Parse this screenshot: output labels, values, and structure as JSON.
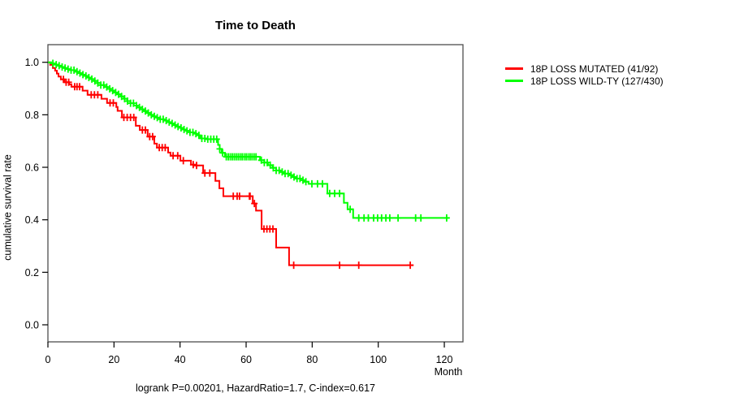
{
  "chart_data": {
    "type": "line",
    "subtype": "kaplan-meier-step",
    "title": "Time to Death",
    "xlabel": "Month",
    "ylabel": "cumulative survival rate",
    "annotation": "logrank P=0.00201, HazardRatio=1.7, C-index=0.617",
    "grid": false,
    "legend_position": "right",
    "xlim": [
      0,
      126
    ],
    "ylim": [
      0.0,
      1.0
    ],
    "x_ticks": {
      "values": [
        0,
        20,
        40,
        60,
        80,
        100,
        120
      ],
      "labels": [
        "0",
        "20",
        "40",
        "60",
        "80",
        "100",
        "120"
      ]
    },
    "y_ticks": {
      "values": [
        1.0,
        0.8,
        0.6,
        0.4,
        0.2,
        0.0
      ],
      "labels": [
        "1.0",
        "0.8",
        "0.6",
        "0.4",
        "0.2",
        "0.0"
      ]
    },
    "series": [
      {
        "name": "18P LOSS MUTATED (41/92)",
        "color": "#ff0000",
        "events_total": "41/92",
        "end_time": 110.7,
        "steps": [
          [
            0,
            1.0
          ],
          [
            0.7,
            0.99
          ],
          [
            1.5,
            0.978
          ],
          [
            2.2,
            0.968
          ],
          [
            2.7,
            0.957
          ],
          [
            3.2,
            0.946
          ],
          [
            3.9,
            0.935
          ],
          [
            5.0,
            0.924
          ],
          [
            6.4,
            0.916
          ],
          [
            7.1,
            0.907
          ],
          [
            10.5,
            0.892
          ],
          [
            12.0,
            0.876
          ],
          [
            16.2,
            0.861
          ],
          [
            17.9,
            0.845
          ],
          [
            20.7,
            0.83
          ],
          [
            21.1,
            0.815
          ],
          [
            22.4,
            0.79
          ],
          [
            26.6,
            0.758
          ],
          [
            27.8,
            0.742
          ],
          [
            30.2,
            0.717
          ],
          [
            32.2,
            0.69
          ],
          [
            33.0,
            0.675
          ],
          [
            36.4,
            0.656
          ],
          [
            37.1,
            0.644
          ],
          [
            40.1,
            0.625
          ],
          [
            43.3,
            0.61
          ],
          [
            44.5,
            0.607
          ],
          [
            47.0,
            0.578
          ],
          [
            50.7,
            0.548
          ],
          [
            51.9,
            0.52
          ],
          [
            53.1,
            0.49
          ],
          [
            62.0,
            0.462
          ],
          [
            63.0,
            0.435
          ],
          [
            64.7,
            0.365
          ],
          [
            69.1,
            0.294
          ],
          [
            73.0,
            0.227
          ]
        ],
        "censor_times": [
          4.7,
          5.5,
          6.3,
          8.1,
          8.8,
          9.6,
          13.1,
          14.1,
          15.1,
          18.8,
          19.8,
          23,
          24,
          25,
          26,
          28.6,
          29.5,
          30.8,
          31.7,
          33.7,
          34.6,
          35.5,
          37.9,
          39.3,
          41,
          44,
          45,
          47.5,
          49,
          56.1,
          57.3,
          58,
          61,
          61.2,
          62.5,
          65.4,
          66.3,
          67.2,
          68.1,
          74.4,
          88.3,
          94.1,
          109.7
        ]
      },
      {
        "name": "18P LOSS WILD-TY (127/430)",
        "color": "#00ff00",
        "events_total": "127/430",
        "end_time": 121.5,
        "steps": [
          [
            0,
            1.0
          ],
          [
            1,
            0.996
          ],
          [
            2,
            0.991
          ],
          [
            3,
            0.987
          ],
          [
            4,
            0.982
          ],
          [
            5,
            0.978
          ],
          [
            6,
            0.974
          ],
          [
            7,
            0.97
          ],
          [
            8,
            0.964
          ],
          [
            9,
            0.959
          ],
          [
            10,
            0.953
          ],
          [
            11,
            0.948
          ],
          [
            12,
            0.942
          ],
          [
            13,
            0.936
          ],
          [
            14,
            0.929
          ],
          [
            15,
            0.921
          ],
          [
            16,
            0.913
          ],
          [
            17,
            0.906
          ],
          [
            18,
            0.899
          ],
          [
            19,
            0.892
          ],
          [
            20,
            0.885
          ],
          [
            21,
            0.878
          ],
          [
            22,
            0.87
          ],
          [
            23,
            0.861
          ],
          [
            24,
            0.852
          ],
          [
            25,
            0.844
          ],
          [
            26,
            0.835
          ],
          [
            27,
            0.828
          ],
          [
            28,
            0.821
          ],
          [
            29,
            0.814
          ],
          [
            30,
            0.807
          ],
          [
            31,
            0.8
          ],
          [
            32,
            0.794
          ],
          [
            33,
            0.789
          ],
          [
            34,
            0.783
          ],
          [
            35,
            0.778
          ],
          [
            36,
            0.772
          ],
          [
            37,
            0.767
          ],
          [
            38,
            0.761
          ],
          [
            39,
            0.755
          ],
          [
            40,
            0.75
          ],
          [
            41,
            0.744
          ],
          [
            42,
            0.739
          ],
          [
            43,
            0.733
          ],
          [
            44,
            0.728
          ],
          [
            45,
            0.722
          ],
          [
            46,
            0.715
          ],
          [
            46.5,
            0.71
          ],
          [
            48,
            0.707
          ],
          [
            51.5,
            0.685
          ],
          [
            52,
            0.67
          ],
          [
            52.6,
            0.655
          ],
          [
            53.6,
            0.64
          ],
          [
            64.2,
            0.627
          ],
          [
            65.5,
            0.618
          ],
          [
            66.6,
            0.608
          ],
          [
            68,
            0.598
          ],
          [
            69.1,
            0.588
          ],
          [
            70.3,
            0.582
          ],
          [
            71.6,
            0.576
          ],
          [
            72.8,
            0.57
          ],
          [
            74,
            0.563
          ],
          [
            75.2,
            0.557
          ],
          [
            76.5,
            0.551
          ],
          [
            77.7,
            0.545
          ],
          [
            78.9,
            0.537
          ],
          [
            84.6,
            0.5
          ],
          [
            89.6,
            0.465
          ],
          [
            90.7,
            0.44
          ],
          [
            92.4,
            0.407
          ]
        ],
        "censor_times": [
          1.5,
          2.5,
          3.4,
          4.3,
          5.2,
          6.1,
          7,
          7.9,
          8.8,
          9.7,
          10.6,
          11.5,
          12.4,
          13.3,
          14.2,
          15.1,
          16,
          16.9,
          17.8,
          18.7,
          19.6,
          20.5,
          21.4,
          22.3,
          23.2,
          24.1,
          25,
          25.9,
          26.8,
          27.7,
          28.6,
          29.5,
          30.4,
          31.3,
          32.2,
          33.1,
          34,
          34.9,
          35.8,
          36.7,
          37.6,
          38.5,
          39.4,
          40.3,
          41.2,
          42.1,
          43,
          43.9,
          44.8,
          45.7,
          46.6,
          47.5,
          48.4,
          49.3,
          50.2,
          51.1,
          52,
          52.9,
          54,
          54.6,
          55.2,
          55.8,
          56.4,
          57,
          57.6,
          58.2,
          58.8,
          59.4,
          60,
          60.6,
          61.2,
          61.8,
          62.4,
          63,
          64.6,
          65.5,
          66.4,
          67.3,
          68.2,
          69.1,
          70,
          70.9,
          71.8,
          72.7,
          73.6,
          74.5,
          75.4,
          76.3,
          77.2,
          78.1,
          79.9,
          81.6,
          83.1,
          85.3,
          86.8,
          88.3,
          91.5,
          94.1,
          95.7,
          97,
          98.6,
          99.8,
          101,
          102.3,
          103.5,
          106,
          111.3,
          112.9,
          120.7
        ]
      }
    ]
  }
}
